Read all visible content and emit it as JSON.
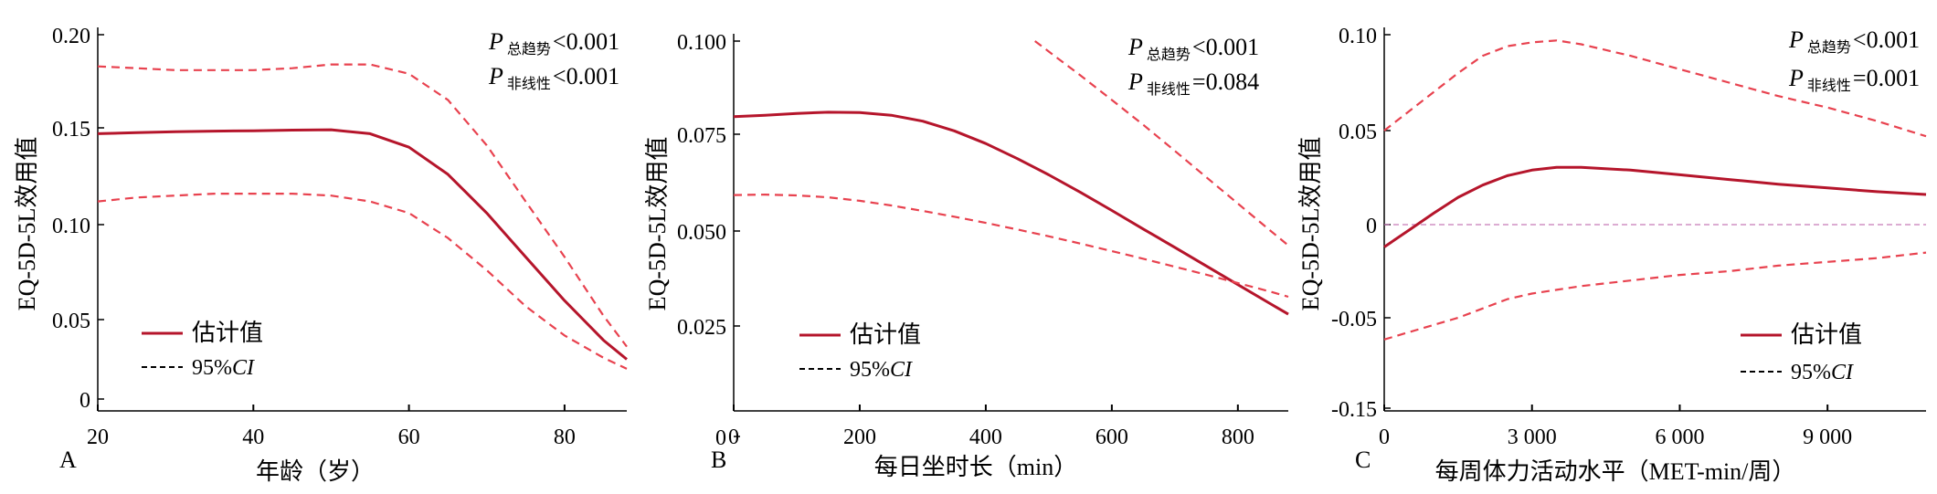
{
  "colors": {
    "estimate": "#b5152b",
    "ci": "#e8424f",
    "reference": "#c77ab8",
    "axis": "#000000"
  },
  "chart_data": [
    {
      "type": "line",
      "panel_label": "A",
      "xlabel": "年龄（岁）",
      "ylabel": "EQ-5D-5L效用值",
      "xlim": [
        20,
        88
      ],
      "ylim": [
        0,
        0.2
      ],
      "x_ticks": [
        20,
        40,
        60,
        80
      ],
      "y_ticks": [
        0,
        0.05,
        0.1,
        0.15,
        0.2
      ],
      "x_tick_labels": [
        "20",
        "40",
        "60",
        "80"
      ],
      "y_tick_labels": [
        "0",
        "0.05",
        "0.10",
        "0.15",
        "0.20"
      ],
      "annotations": [
        {
          "p": "P",
          "sub": "总趋势",
          "text": "<0.001"
        },
        {
          "p": "P",
          "sub": "非线性",
          "text": "<0.001"
        }
      ],
      "legend": {
        "estimate": "估计值",
        "ci_prefix": "95%",
        "ci_italic": "CI",
        "position": "bottom-left"
      },
      "series": [
        {
          "name": "估计值",
          "style": "solid",
          "x": [
            20,
            25,
            30,
            35,
            40,
            45,
            50,
            55,
            60,
            65,
            70,
            75,
            80,
            85,
            88
          ],
          "y": [
            0.147,
            0.1475,
            0.148,
            0.1483,
            0.1485,
            0.1488,
            0.149,
            0.147,
            0.14,
            0.126,
            0.106,
            0.083,
            0.06,
            0.037,
            0.025
          ]
        },
        {
          "name": "95%CI",
          "style": "dashed",
          "x": [
            20,
            25,
            30,
            35,
            40,
            45,
            50,
            55,
            60,
            65,
            70,
            75,
            80,
            85,
            88
          ],
          "y": [
            0.183,
            0.182,
            0.181,
            0.181,
            0.181,
            0.182,
            0.184,
            0.184,
            0.179,
            0.165,
            0.141,
            0.112,
            0.083,
            0.052,
            0.033
          ]
        },
        {
          "name": "95%CI",
          "style": "dashed",
          "x": [
            20,
            25,
            30,
            35,
            40,
            45,
            50,
            55,
            60,
            65,
            70,
            75,
            80,
            85,
            88
          ],
          "y": [
            0.112,
            0.114,
            0.115,
            0.116,
            0.116,
            0.116,
            0.115,
            0.112,
            0.106,
            0.093,
            0.076,
            0.057,
            0.04,
            0.026,
            0.019
          ]
        }
      ]
    },
    {
      "type": "line",
      "panel_label": "B",
      "xlabel": "每日坐时长（min）",
      "ylabel": "EQ-5D-5L效用值",
      "xlim": [
        0,
        880
      ],
      "ylim": [
        0,
        0.1
      ],
      "x_ticks": [
        0,
        200,
        400,
        600,
        800
      ],
      "y_ticks": [
        0,
        0.025,
        0.05,
        0.075,
        0.1
      ],
      "x_tick_labels": [
        "0",
        "200",
        "400",
        "600",
        "800"
      ],
      "y_tick_labels": [
        "0",
        "0.025",
        "0.050",
        "0.075",
        "0.100"
      ],
      "annotations": [
        {
          "p": "P",
          "sub": "总趋势",
          "text": "<0.001"
        },
        {
          "p": "P",
          "sub": "非线性",
          "text": "=0.084"
        }
      ],
      "legend": {
        "estimate": "估计值",
        "ci_prefix": "95%",
        "ci_italic": "CI",
        "position": "bottom-left"
      },
      "series": [
        {
          "name": "估计值",
          "style": "solid",
          "x": [
            0,
            50,
            100,
            150,
            200,
            250,
            300,
            350,
            400,
            450,
            500,
            550,
            600,
            650,
            700,
            750,
            800,
            850,
            880
          ],
          "y": [
            0.0797,
            0.0801,
            0.0806,
            0.0809,
            0.0808,
            0.0801,
            0.0785,
            0.0759,
            0.0726,
            0.0687,
            0.0645,
            0.06,
            0.0553,
            0.0505,
            0.0457,
            0.0408,
            0.0359,
            0.031,
            0.0281
          ]
        },
        {
          "name": "95%CI",
          "style": "dashed",
          "x": [
            478,
            550,
            600,
            650,
            700,
            750,
            800,
            850,
            880
          ],
          "y": [
            0.1,
            0.0908,
            0.0842,
            0.0775,
            0.0707,
            0.0639,
            0.0571,
            0.0503,
            0.0462
          ]
        },
        {
          "name": "95%CI",
          "style": "dashed",
          "x": [
            0,
            50,
            100,
            150,
            200,
            250,
            300,
            350,
            400,
            450,
            500,
            550,
            600,
            650,
            700,
            750,
            800,
            850,
            880
          ],
          "y": [
            0.0593,
            0.0594,
            0.0592,
            0.0587,
            0.0578,
            0.0566,
            0.0552,
            0.0537,
            0.0521,
            0.0504,
            0.0486,
            0.0467,
            0.0447,
            0.0427,
            0.0406,
            0.0385,
            0.0363,
            0.0341,
            0.0327
          ]
        }
      ]
    },
    {
      "type": "line",
      "panel_label": "C",
      "xlabel": "每周体力活动水平（MET-min/周）",
      "ylabel": "EQ-5D-5L效用值",
      "xlim": [
        0,
        11000
      ],
      "ylim": [
        -0.15,
        0.1
      ],
      "x_ticks": [
        0,
        3000,
        6000,
        9000
      ],
      "y_ticks": [
        -0.15,
        -0.05,
        0,
        0.05,
        0.1
      ],
      "x_tick_labels": [
        "0",
        "3 000",
        "6 000",
        "9 000"
      ],
      "y_tick_labels": [
        "-0.15",
        "-0.05",
        "0",
        "0.05",
        "0.10"
      ],
      "annotations": [
        {
          "p": "P",
          "sub": "总趋势",
          "text": "<0.001"
        },
        {
          "p": "P",
          "sub": "非线性",
          "text": "=0.001"
        }
      ],
      "legend": {
        "estimate": "估计值",
        "ci_prefix": "95%",
        "ci_italic": "CI",
        "position": "bottom-right"
      },
      "reference_line": {
        "y": 0
      },
      "series": [
        {
          "name": "估计值",
          "style": "solid",
          "x": [
            0,
            500,
            1000,
            1500,
            2000,
            2500,
            3000,
            3500,
            4000,
            5000,
            6000,
            7000,
            8000,
            9000,
            10000,
            11000
          ],
          "y": [
            -0.012,
            -0.003,
            0.006,
            0.0145,
            0.021,
            0.026,
            0.029,
            0.0305,
            0.0305,
            0.029,
            0.0265,
            0.024,
            0.0215,
            0.0195,
            0.0175,
            0.016
          ]
        },
        {
          "name": "95%CI",
          "style": "dashed",
          "x": [
            0,
            500,
            1000,
            1500,
            2000,
            2500,
            3000,
            3500,
            4000,
            5000,
            6000,
            7000,
            8000,
            9000,
            10000,
            11000
          ],
          "y": [
            0.05,
            0.06,
            0.07,
            0.08,
            0.089,
            0.094,
            0.096,
            0.097,
            0.095,
            0.089,
            0.082,
            0.075,
            0.068,
            0.062,
            0.055,
            0.047
          ]
        },
        {
          "name": "95%CI",
          "style": "dashed",
          "x": [
            0,
            500,
            1000,
            1500,
            2000,
            2500,
            3000,
            3500,
            4000,
            5000,
            6000,
            7000,
            8000,
            9000,
            10000,
            11000
          ],
          "y": [
            -0.074,
            -0.066,
            -0.058,
            -0.05,
            -0.045,
            -0.04,
            -0.037,
            -0.035,
            -0.033,
            -0.03,
            -0.027,
            -0.025,
            -0.022,
            -0.02,
            -0.018,
            -0.015
          ]
        }
      ]
    }
  ]
}
